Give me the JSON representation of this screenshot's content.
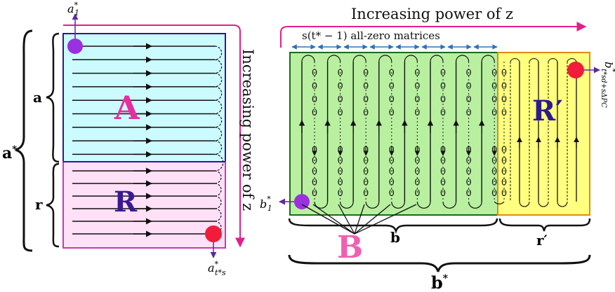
{
  "left": {
    "labels": {
      "a1": "a",
      "a1_sup": "*",
      "a1_sub": "1",
      "a_last": "a",
      "a_last_sup": "*",
      "a_last_sub": "t*s",
      "a_star": "a",
      "a_star_sup": "*",
      "a": "a",
      "r": "r",
      "A": "A",
      "R": "R",
      "power": "Increasing power of z"
    },
    "colors": {
      "region_a": "#ccfbff",
      "region_r": "#ffe0f7",
      "border": "#2d1a8c",
      "arrow": "#e0208a",
      "start_dot": "#9b30e0",
      "end_dot": "#f01c3a",
      "letter_A": "#e62ea0",
      "letter_R": "#3a1a90"
    },
    "a_row_count": 9,
    "r_row_count": 6
  },
  "right": {
    "labels": {
      "power": "Increasing power of z",
      "zero_matrices": "s(t* − 1) all-zero matrices",
      "zero": "0",
      "R_prime": "R′",
      "b": "b",
      "r_prime": "r′",
      "B": "B",
      "b_star": "b",
      "b_star_sup": "*",
      "b1": "b",
      "b1_sup": "*",
      "b1_sub": "1",
      "b_last": "b",
      "b_last_sup": "*",
      "b_last_sub": "t*sd+sΔPC"
    },
    "colors": {
      "region_b": "#b8f0a0",
      "region_b_border": "#1a6a1a",
      "region_r": "#ffff80",
      "region_r_border": "#e08a10",
      "arrow": "#e0208a",
      "tick_arrow": "#3070b0",
      "letter_R": "#2d1a8c",
      "letter_B": "#f060b0",
      "start_dot": "#9b30e0",
      "end_dot": "#f01c3a"
    },
    "zero_column_count": 8,
    "zero_rows_per_column": 9,
    "r_column_count": 4
  }
}
